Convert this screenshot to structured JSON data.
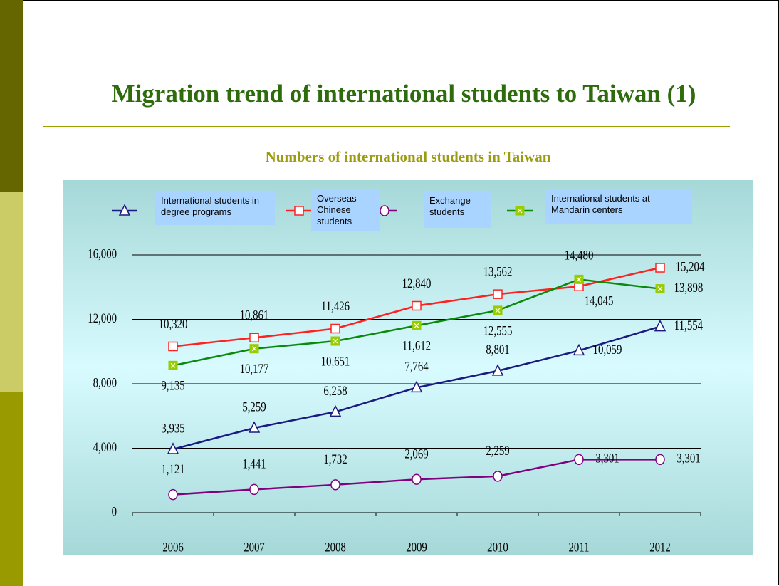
{
  "title": "Migration trend of international students to Taiwan (1)",
  "chart_data": {
    "type": "line",
    "title": "Numbers of international students in Taiwan",
    "categories": [
      "2006",
      "2007",
      "2008",
      "2009",
      "2010",
      "2011",
      "2012"
    ],
    "series": [
      {
        "name": "International students in degree programs",
        "color": "#1a1a80",
        "marker": "triangle",
        "values": [
          3935,
          5259,
          6258,
          7764,
          8801,
          10059,
          11554
        ],
        "value_labels": [
          "3,935",
          "5,259",
          "6,258",
          "7,764",
          "8,801",
          "10,059",
          "11,554"
        ]
      },
      {
        "name": "Overseas Chinese students",
        "color": "#ff2020",
        "marker": "square",
        "values": [
          10320,
          10861,
          11426,
          12840,
          13562,
          14045,
          15204
        ],
        "value_labels": [
          "10,320",
          "10,861",
          "11,426",
          "12,840",
          "13,562",
          "14,045",
          "15,204"
        ]
      },
      {
        "name": "Exchange students",
        "color": "#800080",
        "marker": "circle",
        "values": [
          1121,
          1441,
          1732,
          2069,
          2259,
          3301,
          3301
        ],
        "value_labels": [
          "1,121",
          "1,441",
          "1,732",
          "2,069",
          "2,259",
          "3,301",
          "3,301"
        ]
      },
      {
        "name": "International students at Mandarin centers",
        "color": "#0a8a0a",
        "marker": "x-square",
        "values": [
          9135,
          10177,
          10651,
          11612,
          12555,
          14480,
          13898
        ],
        "value_labels": [
          "9,135",
          "10,177",
          "10,651",
          "11,612",
          "12,555",
          "14,480",
          "13,898"
        ]
      }
    ],
    "ylim": [
      0,
      16000
    ],
    "yticks": [
      0,
      {
        "value": 4000,
        "label": "4,000"
      },
      {
        "value": 8000,
        "label": "8,000"
      },
      {
        "value": 12000,
        "label": "12,000"
      },
      {
        "value": 16000,
        "label": "16,000"
      }
    ],
    "grid": true,
    "legend": "top"
  }
}
